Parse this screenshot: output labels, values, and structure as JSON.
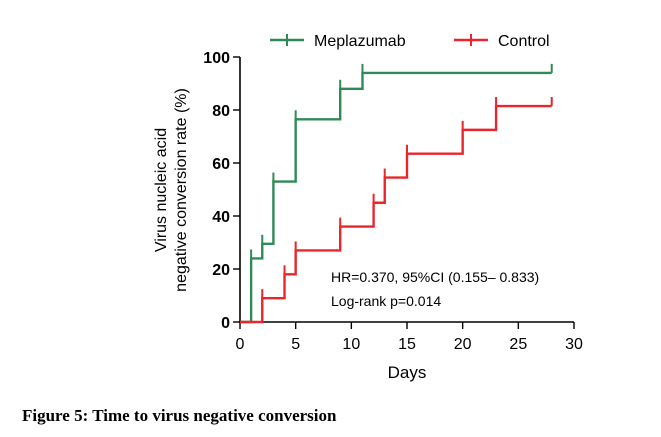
{
  "figure": {
    "caption": "Figure 5: Time to virus negative conversion"
  },
  "chart_data": {
    "type": "line",
    "subtype": "kaplan-meier step curve",
    "xlabel": "Days",
    "ylabel": [
      "Virus nucleic acid",
      "negative conversion rate (%)"
    ],
    "xlim": [
      0,
      30
    ],
    "ylim": [
      0,
      100
    ],
    "xticks": [
      0,
      5,
      10,
      15,
      20,
      25,
      30
    ],
    "yticks": [
      0,
      20,
      40,
      60,
      80,
      100
    ],
    "grid": false,
    "legend_position": "top",
    "series": [
      {
        "name": "Meplazumab",
        "color": "#2e8b57",
        "steps": [
          [
            0,
            0
          ],
          [
            1,
            0
          ],
          [
            1,
            24
          ],
          [
            2,
            24
          ],
          [
            2,
            29.5
          ],
          [
            3,
            29.5
          ],
          [
            3,
            53
          ],
          [
            5,
            53
          ],
          [
            5,
            76.5
          ],
          [
            9,
            76.5
          ],
          [
            9,
            88
          ],
          [
            11,
            88
          ],
          [
            11,
            94
          ],
          [
            28,
            94
          ]
        ],
        "censored": [
          [
            1,
            24
          ],
          [
            2,
            29.5
          ],
          [
            3,
            53
          ],
          [
            5,
            76.5
          ],
          [
            9,
            88
          ],
          [
            11,
            94
          ],
          [
            28,
            94
          ]
        ]
      },
      {
        "name": "Control",
        "color": "#e8262b",
        "steps": [
          [
            0,
            0
          ],
          [
            2,
            0
          ],
          [
            2,
            9
          ],
          [
            4,
            9
          ],
          [
            4,
            18
          ],
          [
            5,
            18
          ],
          [
            5,
            27
          ],
          [
            9,
            27
          ],
          [
            9,
            36
          ],
          [
            12,
            36
          ],
          [
            12,
            45
          ],
          [
            13,
            45
          ],
          [
            13,
            54.5
          ],
          [
            15,
            54.5
          ],
          [
            15,
            63.5
          ],
          [
            20,
            63.5
          ],
          [
            20,
            72.5
          ],
          [
            23,
            72.5
          ],
          [
            23,
            81.5
          ],
          [
            28,
            81.5
          ]
        ],
        "censored": [
          [
            2,
            9
          ],
          [
            4,
            18
          ],
          [
            5,
            27
          ],
          [
            9,
            36
          ],
          [
            12,
            45
          ],
          [
            13,
            54.5
          ],
          [
            15,
            63.5
          ],
          [
            20,
            72.5
          ],
          [
            23,
            81.5
          ],
          [
            28,
            81.5
          ]
        ]
      }
    ],
    "annotations": [
      "HR=0.370, 95%CI (0.155– 0.833)",
      "Log-rank p=0.014"
    ]
  }
}
